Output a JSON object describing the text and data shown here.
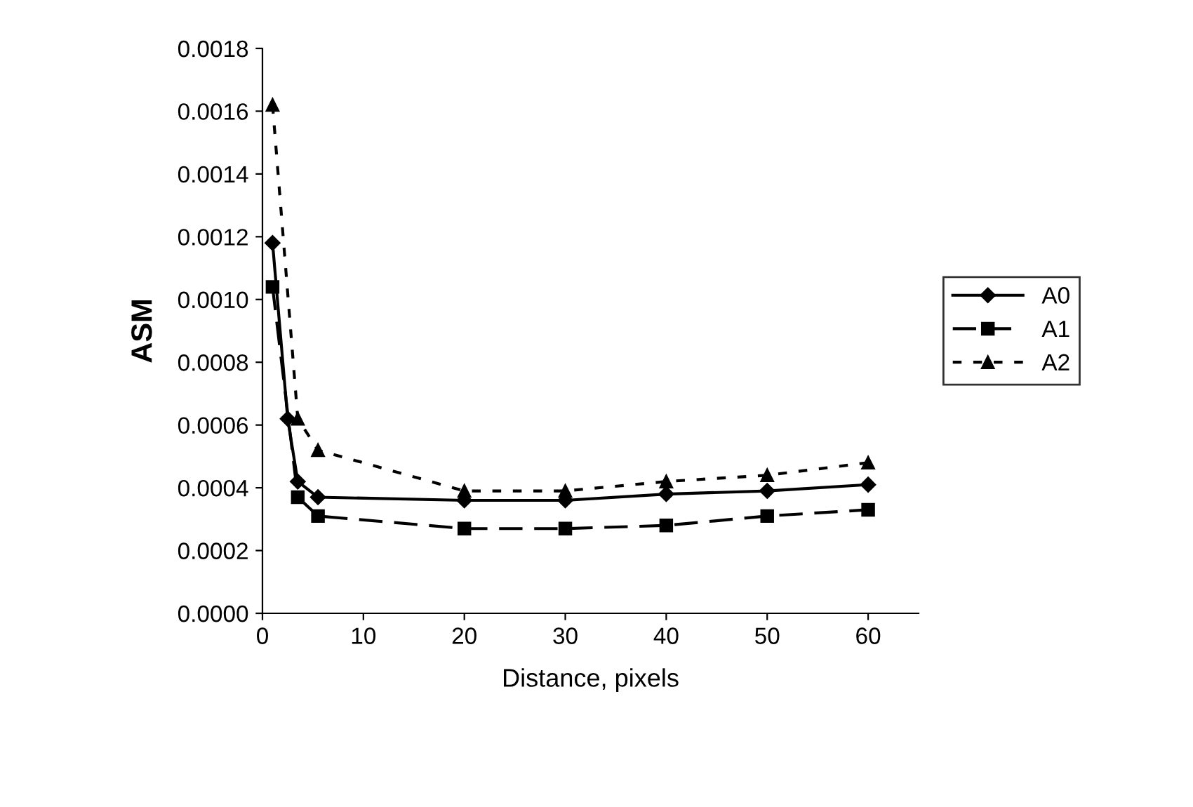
{
  "chart_data": {
    "type": "line",
    "xlabel": "Distance, pixels",
    "ylabel": "ASM",
    "xlim": [
      0,
      65
    ],
    "xticks": [
      0,
      10,
      20,
      30,
      40,
      50,
      60
    ],
    "ylim": [
      0,
      0.0018
    ],
    "yticks": [
      {
        "value": 0,
        "label": "0.0000"
      },
      {
        "value": 0.0002,
        "label": "0.0002"
      },
      {
        "value": 0.0004,
        "label": "0.0004"
      },
      {
        "value": 0.0006,
        "label": "0.0006"
      },
      {
        "value": 0.0008,
        "label": "0.0008"
      },
      {
        "value": 0.001,
        "label": "0.0010"
      },
      {
        "value": 0.0012,
        "label": "0.0012"
      },
      {
        "value": 0.0014,
        "label": "0.0014"
      },
      {
        "value": 0.0016,
        "label": "0.0016"
      },
      {
        "value": 0.0018,
        "label": "0.0018"
      }
    ],
    "grid": false,
    "legend": "right",
    "series": [
      {
        "name": "A0",
        "color": "#000000",
        "marker": "diamond",
        "line_style": "solid",
        "x": [
          1,
          2.5,
          3.5,
          5.5,
          20,
          30,
          40,
          50,
          60
        ],
        "values": [
          0.00118,
          0.00062,
          0.00042,
          0.00037,
          0.00036,
          0.00036,
          0.00038,
          0.00039,
          0.00041
        ]
      },
      {
        "name": "A1",
        "color": "#000000",
        "marker": "square",
        "line_style": "dashed",
        "x": [
          1,
          3.5,
          5.5,
          20,
          30,
          40,
          50,
          60
        ],
        "values": [
          0.00104,
          0.00037,
          0.00031,
          0.00027,
          0.00027,
          0.00028,
          0.00031,
          0.00033
        ]
      },
      {
        "name": "A2",
        "color": "#000000",
        "marker": "triangle",
        "line_style": "dotted",
        "x": [
          1,
          3.5,
          5.5,
          20,
          30,
          40,
          50,
          60
        ],
        "values": [
          0.00162,
          0.00062,
          0.00052,
          0.00039,
          0.00039,
          0.00042,
          0.00044,
          0.00048
        ]
      }
    ]
  }
}
